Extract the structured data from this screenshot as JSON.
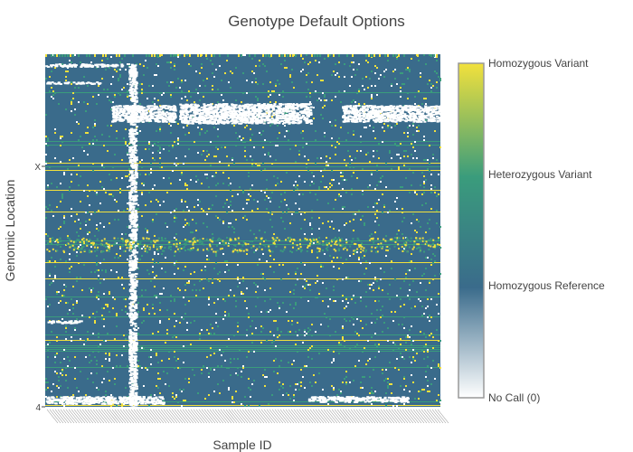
{
  "chart_data": {
    "type": "heatmap",
    "title": "Genotype Default Options",
    "xlabel": "Sample ID",
    "ylabel": "Genomic Location",
    "y_ticks": [
      "X",
      "4"
    ],
    "x_tick_labels": "dense, unreadable sample IDs",
    "colorscale": [
      {
        "value": 0,
        "color": "#ffffff"
      },
      {
        "value": 1,
        "color": "#3a6b8b"
      },
      {
        "value": 2,
        "color": "#3a9c7c"
      },
      {
        "value": 3,
        "color": "#f2e13c"
      }
    ],
    "colorbar": {
      "ticks": [
        {
          "value": 3,
          "label": "Homozygous Variant"
        },
        {
          "value": 2,
          "label": "Heterozygous Variant"
        },
        {
          "value": 1,
          "label": "Homozygous Reference"
        },
        {
          "value": 0,
          "label": "No Call (0)"
        }
      ],
      "range": [
        0,
        3
      ]
    },
    "dominant_value": 1,
    "colors": {
      "reference": "#3a6b8b",
      "heterozygous": "#3a9c7c",
      "variant": "#f2e13c",
      "nocall": "#ffffff"
    }
  }
}
